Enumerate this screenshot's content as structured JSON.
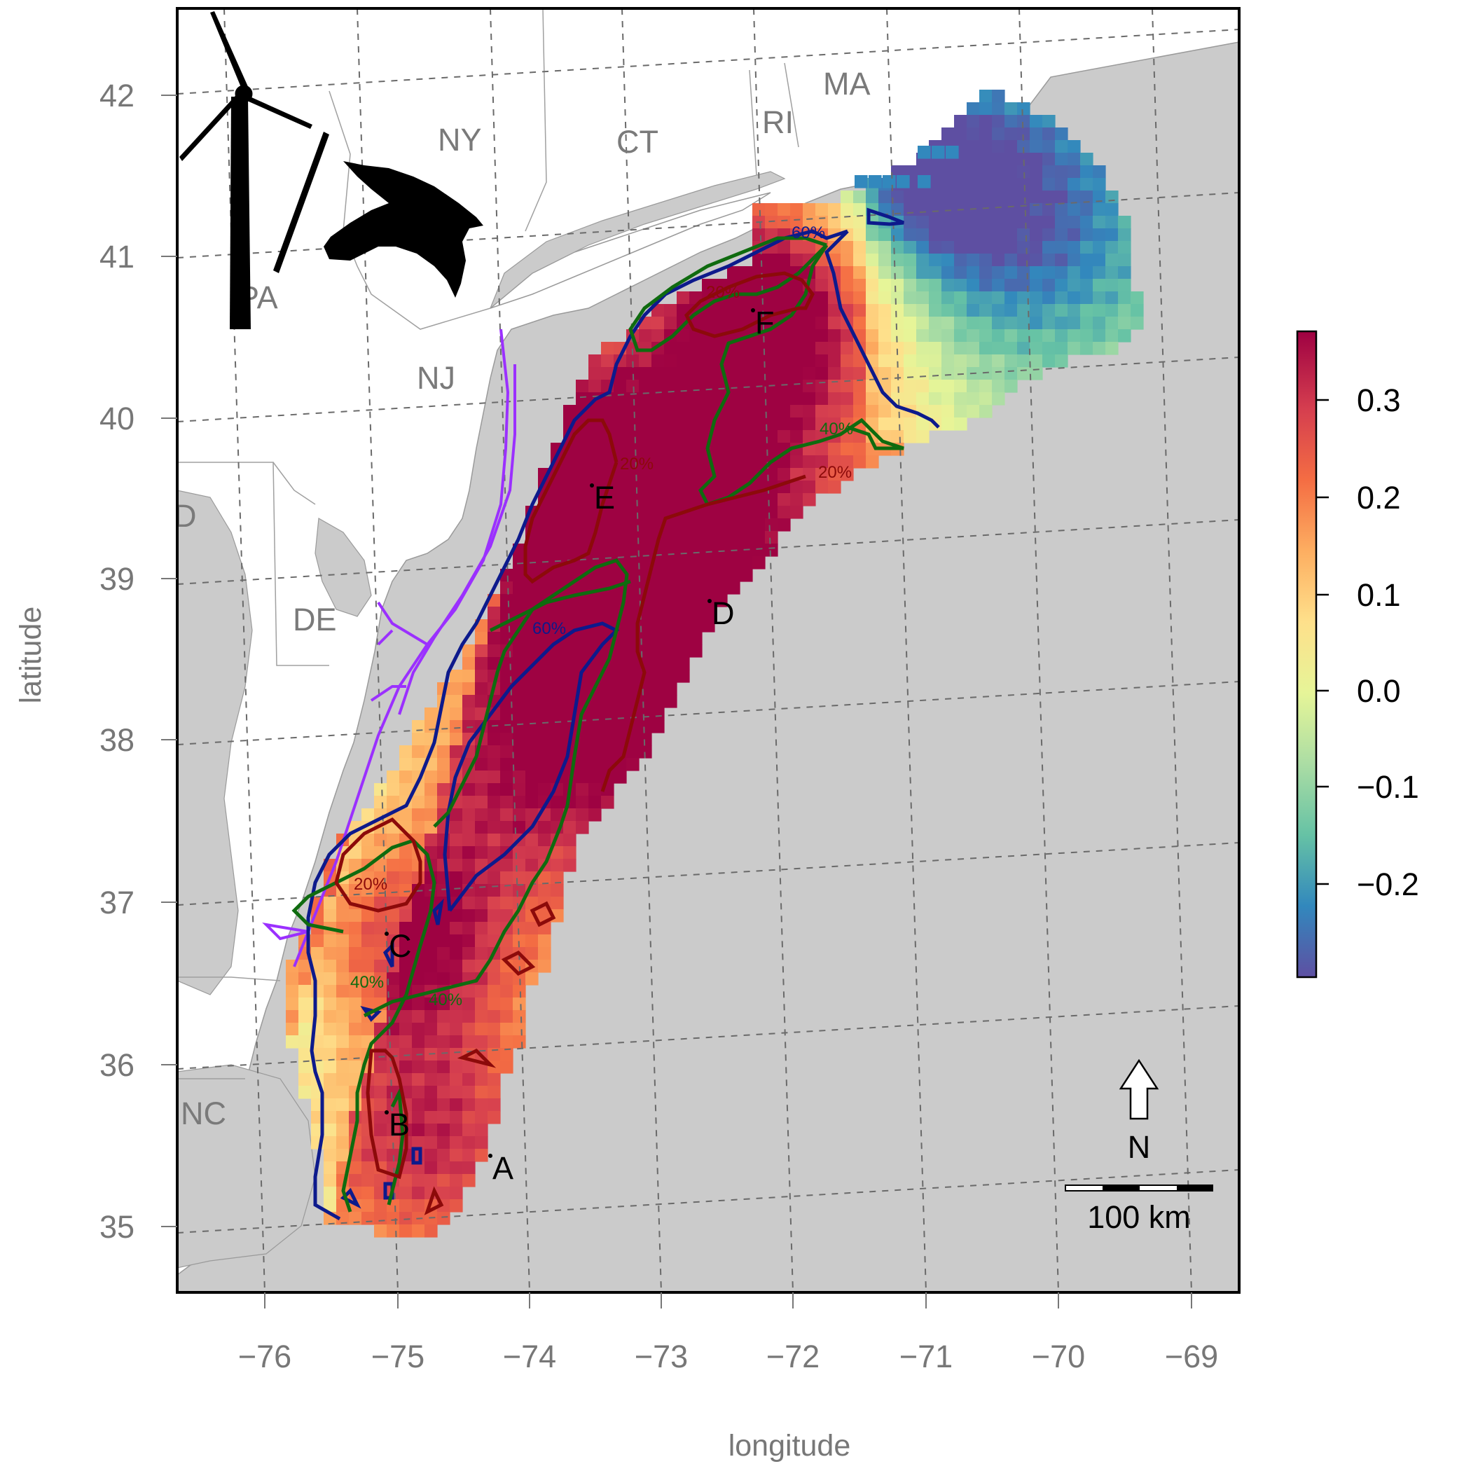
{
  "axes": {
    "xlabel": "longitude",
    "ylabel": "latitude",
    "x_ticks": [
      "−76",
      "−75",
      "−74",
      "−73",
      "−72",
      "−71",
      "−70",
      "−69"
    ],
    "y_ticks": [
      "35",
      "36",
      "37",
      "38",
      "39",
      "40",
      "41",
      "42"
    ]
  },
  "states": [
    "NY",
    "CT",
    "RI",
    "MA",
    "PA",
    "NJ",
    "DE",
    "NC",
    "D"
  ],
  "sites": [
    "A",
    "B",
    "C",
    "D",
    "E",
    "F"
  ],
  "contour_labels": [
    "60%",
    "40%",
    "20%"
  ],
  "colorbar": {
    "ticks": [
      "0.3",
      "0.2",
      "0.1",
      "0.0",
      "−0.1",
      "−0.2"
    ],
    "colors": [
      "#5E4FA2",
      "#3288BD",
      "#66C2A5",
      "#ABDDA4",
      "#E6F598",
      "#FEE08B",
      "#FDAE61",
      "#F46D43",
      "#D53E4F",
      "#9E0142"
    ]
  },
  "legend": {
    "north": "N",
    "scale": "100 km"
  },
  "contour_colors": {
    "c60": "#0d1a8c",
    "c40": "#0f6b0f",
    "c20": "#8c0a0a",
    "corridor": "#9b30ff"
  },
  "icons": [
    "wind-turbine-icon",
    "bird-silhouette-icon"
  ]
}
